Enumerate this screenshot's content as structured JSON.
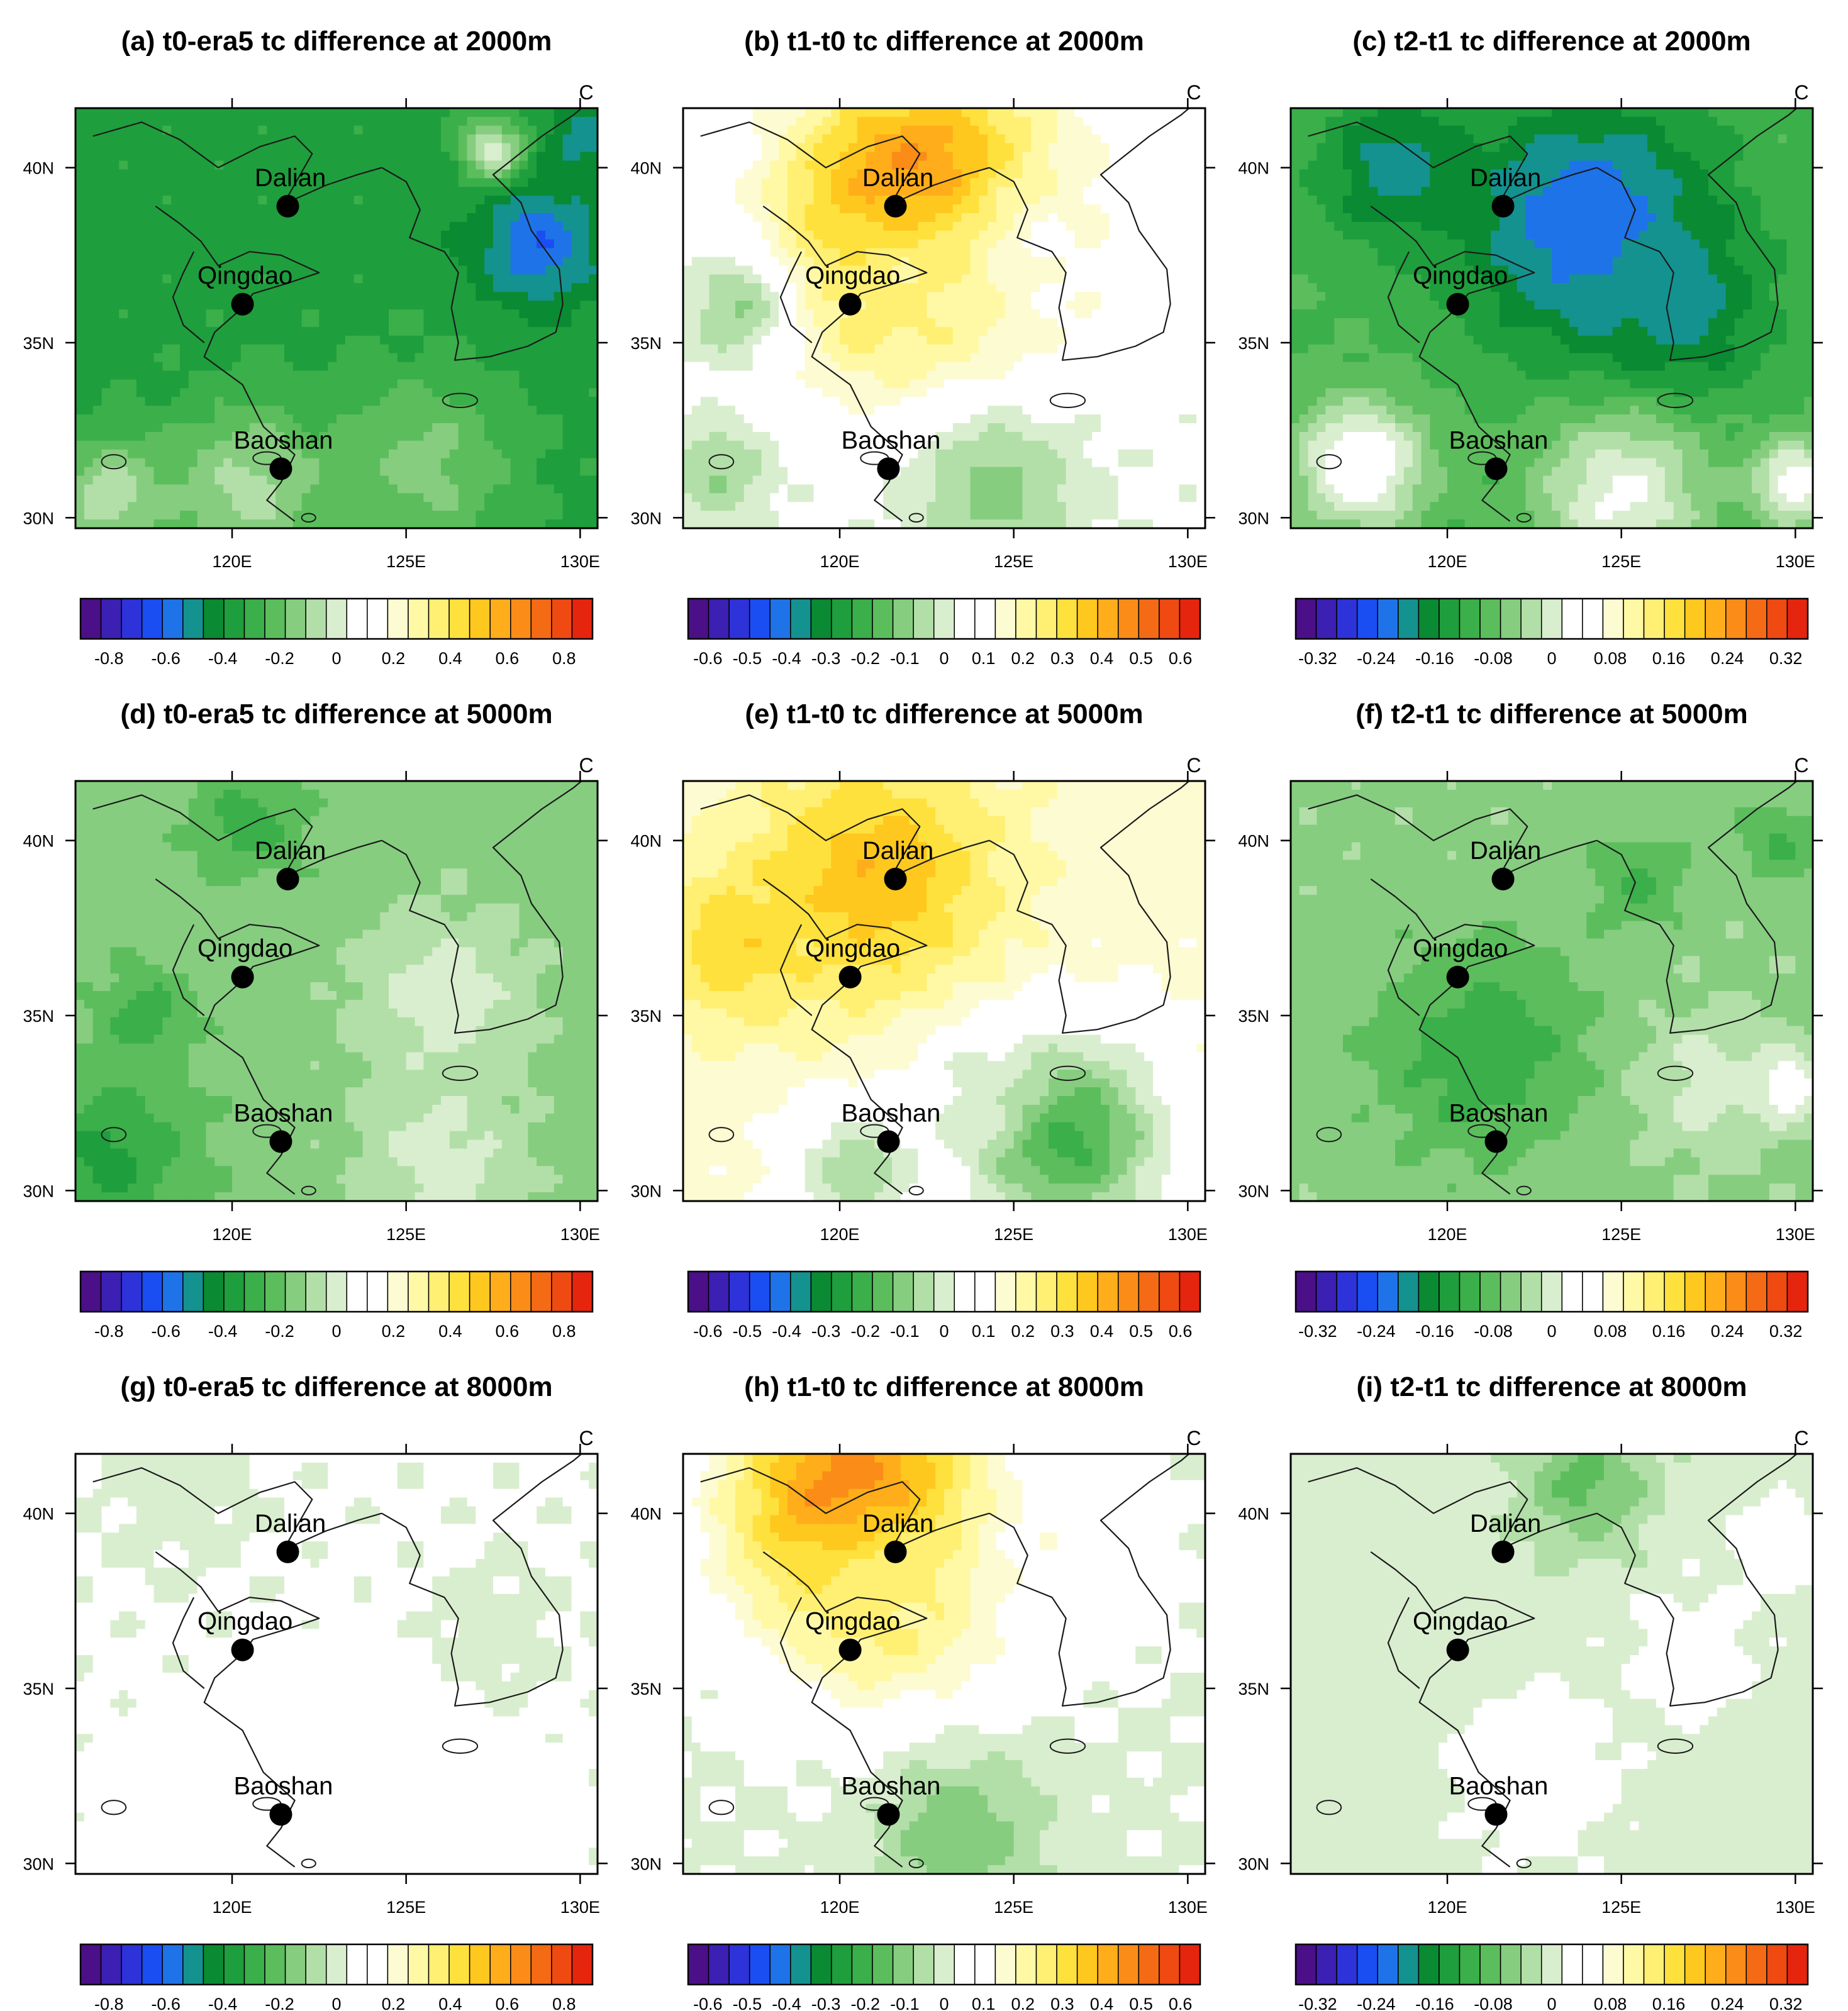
{
  "unit_label": "C",
  "x_ticks": [
    "120E",
    "125E",
    "130E"
  ],
  "y_ticks": [
    "40N",
    "35N",
    "30N"
  ],
  "cities": [
    {
      "name": "Dalian",
      "lon": 121.6,
      "lat": 38.9
    },
    {
      "name": "Qingdao",
      "lon": 120.3,
      "lat": 36.1
    },
    {
      "name": "Baoshan",
      "lon": 121.4,
      "lat": 31.4
    }
  ],
  "chart_data": [
    {
      "type": "heatmap",
      "id": "a",
      "title": "(a) t0-era5 tc difference at 2000m",
      "level_m": 2000,
      "xlim": [
        115.5,
        130.5
      ],
      "ylim": [
        29.7,
        41.7
      ],
      "colorbar_range": [
        -0.9,
        0.9
      ],
      "colorbar_ticks": [
        "-0.8",
        "-0.6",
        "-0.4",
        "-0.2",
        "0",
        "0.2",
        "0.4",
        "0.6",
        "0.8"
      ],
      "background_value": -0.35,
      "features": [
        {
          "lon": 128.8,
          "lat": 37.8,
          "value": -0.6,
          "radius": 1.8
        },
        {
          "lon": 130.1,
          "lat": 40.8,
          "value": -0.5,
          "radius": 1.2
        },
        {
          "lon": 127.5,
          "lat": 40.5,
          "value": 0.0,
          "radius": 0.9
        },
        {
          "lon": 120.5,
          "lat": 30.8,
          "value": -0.08,
          "radius": 2.4
        },
        {
          "lon": 125.5,
          "lat": 31.5,
          "value": -0.15,
          "radius": 2.6
        },
        {
          "lon": 116.5,
          "lat": 30.6,
          "value": -0.05,
          "radius": 1.6
        }
      ]
    },
    {
      "type": "heatmap",
      "id": "b",
      "title": "(b) t1-t0 tc difference at 2000m",
      "level_m": 2000,
      "xlim": [
        115.5,
        130.5
      ],
      "ylim": [
        29.7,
        41.7
      ],
      "colorbar_range": [
        -0.65,
        0.65
      ],
      "colorbar_ticks": [
        "-0.6",
        "-0.5",
        "-0.4",
        "-0.3",
        "-0.2",
        "-0.1",
        "0",
        "0.1",
        "0.2",
        "0.3",
        "0.4",
        "0.5",
        "0.6"
      ],
      "background_value": 0.04,
      "features": [
        {
          "lon": 122.5,
          "lat": 38.8,
          "value": 0.58,
          "radius": 4.0
        },
        {
          "lon": 121.5,
          "lat": 36.5,
          "value": 0.25,
          "radius": 2.8
        },
        {
          "lon": 126.0,
          "lat": 37.5,
          "value": 0.12,
          "radius": 3.0
        },
        {
          "lon": 117.0,
          "lat": 36.0,
          "value": -0.08,
          "radius": 1.6
        },
        {
          "lon": 124.5,
          "lat": 30.7,
          "value": -0.1,
          "radius": 2.4
        },
        {
          "lon": 116.5,
          "lat": 31.3,
          "value": -0.08,
          "radius": 1.4
        }
      ]
    },
    {
      "type": "heatmap",
      "id": "c",
      "title": "(c) t2-t1 tc difference at 2000m",
      "level_m": 2000,
      "xlim": [
        115.5,
        130.5
      ],
      "ylim": [
        29.7,
        41.7
      ],
      "colorbar_range": [
        -0.35,
        0.35
      ],
      "colorbar_ticks": [
        "-0.32",
        "-0.24",
        "-0.16",
        "-0.08",
        "0",
        "0.08",
        "0.16",
        "0.24",
        "0.32"
      ],
      "background_value": -0.1,
      "features": [
        {
          "lon": 124.0,
          "lat": 38.4,
          "value": -0.24,
          "radius": 3.6
        },
        {
          "lon": 118.5,
          "lat": 40.0,
          "value": -0.2,
          "radius": 2.0
        },
        {
          "lon": 126.5,
          "lat": 36.0,
          "value": -0.2,
          "radius": 2.4
        },
        {
          "lon": 117.5,
          "lat": 31.5,
          "value": 0.06,
          "radius": 1.8
        },
        {
          "lon": 125.0,
          "lat": 30.6,
          "value": 0.02,
          "radius": 2.4
        },
        {
          "lon": 130.0,
          "lat": 31.0,
          "value": 0.04,
          "radius": 1.2
        }
      ]
    },
    {
      "type": "heatmap",
      "id": "d",
      "title": "(d) t0-era5 tc difference at 5000m",
      "level_m": 5000,
      "xlim": [
        115.5,
        130.5
      ],
      "ylim": [
        29.7,
        41.7
      ],
      "colorbar_range": [
        -0.9,
        0.9
      ],
      "colorbar_ticks": [
        "-0.8",
        "-0.6",
        "-0.4",
        "-0.2",
        "0",
        "0.2",
        "0.4",
        "0.6",
        "0.8"
      ],
      "background_value": -0.15,
      "features": [
        {
          "lon": 116.5,
          "lat": 31.0,
          "value": -0.35,
          "radius": 2.2
        },
        {
          "lon": 120.5,
          "lat": 40.5,
          "value": -0.3,
          "radius": 1.4
        },
        {
          "lon": 126.0,
          "lat": 35.5,
          "value": 0.0,
          "radius": 2.6
        },
        {
          "lon": 126.0,
          "lat": 30.8,
          "value": 0.0,
          "radius": 2.4
        },
        {
          "lon": 117.5,
          "lat": 35.0,
          "value": -0.3,
          "radius": 1.2
        }
      ]
    },
    {
      "type": "heatmap",
      "id": "e",
      "title": "(e) t1-t0 tc difference at 5000m",
      "level_m": 5000,
      "xlim": [
        115.5,
        130.5
      ],
      "ylim": [
        29.7,
        41.7
      ],
      "colorbar_range": [
        -0.65,
        0.65
      ],
      "colorbar_ticks": [
        "-0.6",
        "-0.5",
        "-0.4",
        "-0.3",
        "-0.2",
        "-0.1",
        "0",
        "0.1",
        "0.2",
        "0.3",
        "0.4",
        "0.5",
        "0.6"
      ],
      "background_value": 0.15,
      "features": [
        {
          "lon": 121.0,
          "lat": 39.0,
          "value": 0.38,
          "radius": 3.6
        },
        {
          "lon": 117.0,
          "lat": 37.0,
          "value": 0.33,
          "radius": 2.2
        },
        {
          "lon": 126.5,
          "lat": 31.5,
          "value": -0.2,
          "radius": 3.0
        },
        {
          "lon": 120.5,
          "lat": 30.5,
          "value": -0.06,
          "radius": 2.0
        },
        {
          "lon": 124.0,
          "lat": 33.0,
          "value": 0.0,
          "radius": 1.6
        }
      ]
    },
    {
      "type": "heatmap",
      "id": "f",
      "title": "(f) t2-t1 tc difference at 5000m",
      "level_m": 5000,
      "xlim": [
        115.5,
        130.5
      ],
      "ylim": [
        29.7,
        41.7
      ],
      "colorbar_range": [
        -0.35,
        0.35
      ],
      "colorbar_ticks": [
        "-0.32",
        "-0.24",
        "-0.16",
        "-0.08",
        "0",
        "0.08",
        "0.16",
        "0.24",
        "0.32"
      ],
      "background_value": -0.05,
      "features": [
        {
          "lon": 121.0,
          "lat": 34.0,
          "value": -0.12,
          "radius": 3.0
        },
        {
          "lon": 125.5,
          "lat": 38.8,
          "value": -0.1,
          "radius": 1.4
        },
        {
          "lon": 129.5,
          "lat": 40.0,
          "value": -0.1,
          "radius": 1.2
        },
        {
          "lon": 127.5,
          "lat": 33.0,
          "value": 0.0,
          "radius": 2.0
        },
        {
          "lon": 129.8,
          "lat": 33.0,
          "value": 0.04,
          "radius": 1.0
        }
      ]
    },
    {
      "type": "heatmap",
      "id": "g",
      "title": "(g) t0-era5 tc difference at 8000m",
      "level_m": 8000,
      "xlim": [
        115.5,
        130.5
      ],
      "ylim": [
        29.7,
        41.7
      ],
      "colorbar_range": [
        -0.9,
        0.9
      ],
      "colorbar_ticks": [
        "-0.8",
        "-0.6",
        "-0.4",
        "-0.2",
        "0",
        "0.2",
        "0.4",
        "0.6",
        "0.8"
      ],
      "background_value": 0.05,
      "features": [
        {
          "lon": 124.5,
          "lat": 32.0,
          "value": 0.15,
          "radius": 3.4
        },
        {
          "lon": 119.0,
          "lat": 31.5,
          "value": 0.12,
          "radius": 2.2
        },
        {
          "lon": 118.5,
          "lat": 40.5,
          "value": 0.0,
          "radius": 2.2
        },
        {
          "lon": 127.5,
          "lat": 36.5,
          "value": 0.0,
          "radius": 2.0
        }
      ]
    },
    {
      "type": "heatmap",
      "id": "h",
      "title": "(h) t1-t0 tc difference at 8000m",
      "level_m": 8000,
      "xlim": [
        115.5,
        130.5
      ],
      "ylim": [
        29.7,
        41.7
      ],
      "colorbar_range": [
        -0.65,
        0.65
      ],
      "colorbar_ticks": [
        "-0.6",
        "-0.5",
        "-0.4",
        "-0.3",
        "-0.2",
        "-0.1",
        "0",
        "0.1",
        "0.2",
        "0.3",
        "0.4",
        "0.5",
        "0.6"
      ],
      "background_value": 0.02,
      "features": [
        {
          "lon": 120.5,
          "lat": 40.3,
          "value": 0.56,
          "radius": 3.6
        },
        {
          "lon": 121.5,
          "lat": 37.5,
          "value": 0.25,
          "radius": 3.2
        },
        {
          "lon": 126.5,
          "lat": 38.5,
          "value": 0.12,
          "radius": 2.6
        },
        {
          "lon": 123.5,
          "lat": 30.8,
          "value": -0.12,
          "radius": 2.4
        }
      ]
    },
    {
      "type": "heatmap",
      "id": "i",
      "title": "(i) t2-t1 tc difference at 8000m",
      "level_m": 8000,
      "xlim": [
        115.5,
        130.5
      ],
      "ylim": [
        29.7,
        41.7
      ],
      "colorbar_range": [
        -0.35,
        0.35
      ],
      "colorbar_ticks": [
        "-0.32",
        "-0.24",
        "-0.16",
        "-0.08",
        "0",
        "0.08",
        "0.16",
        "0.24",
        "0.32"
      ],
      "background_value": 0.0,
      "features": [
        {
          "lon": 124.0,
          "lat": 40.8,
          "value": -0.08,
          "radius": 1.8
        },
        {
          "lon": 122.5,
          "lat": 32.5,
          "value": 0.05,
          "radius": 2.2
        },
        {
          "lon": 127.0,
          "lat": 36.0,
          "value": 0.04,
          "radius": 1.8
        },
        {
          "lon": 129.5,
          "lat": 39.0,
          "value": 0.05,
          "radius": 1.2
        }
      ]
    }
  ]
}
